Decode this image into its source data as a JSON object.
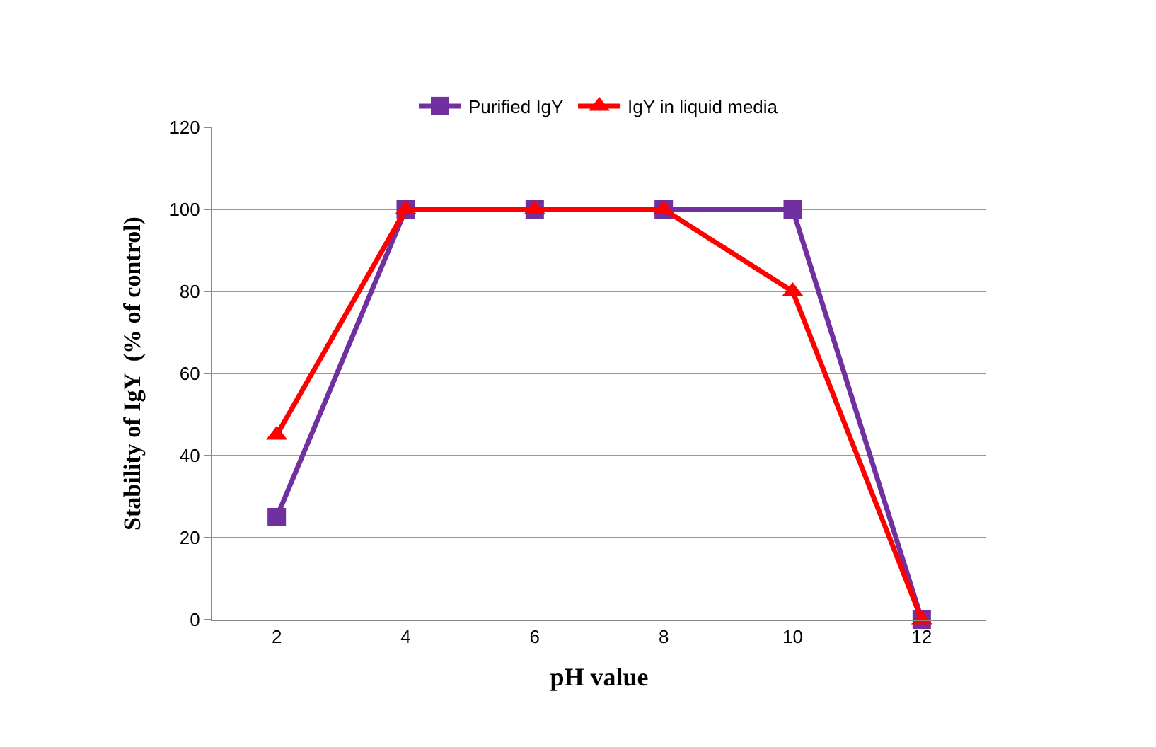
{
  "chart_data": {
    "type": "line",
    "xlabel": "pH value",
    "ylabel": "Stability of IgY  (% of control)",
    "categories": [
      "2",
      "4",
      "6",
      "8",
      "10",
      "12"
    ],
    "series": [
      {
        "name": "Purified IgY",
        "color": "#7030a0",
        "marker": "square",
        "values": [
          25,
          100,
          100,
          100,
          100,
          0
        ]
      },
      {
        "name": "IgY in liquid media",
        "color": "#ff0000",
        "marker": "triangle",
        "values": [
          45,
          100,
          100,
          100,
          80,
          0
        ]
      }
    ],
    "ylim": [
      0,
      120
    ],
    "yticks": [
      0,
      20,
      40,
      60,
      80,
      100,
      120
    ],
    "grid": "y",
    "legend": "top",
    "line_style": "solid"
  }
}
